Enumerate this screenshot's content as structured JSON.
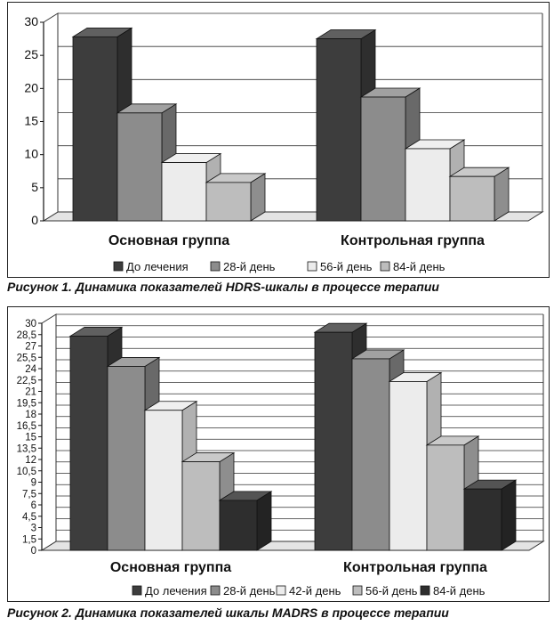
{
  "figures": [
    {
      "caption": "Рисунок 1. Динамика показателей HDRS-шкалы в процессе терапии"
    },
    {
      "caption": "Рисунок 2. Динамика показателей шкалы MADRS в процессе терапии"
    }
  ],
  "chart_data": [
    {
      "type": "bar",
      "categories": [
        "Основная группа",
        "Контрольная группа"
      ],
      "series": [
        {
          "name": "До лечения",
          "values": [
            27.8,
            27.5
          ],
          "color": "#3d3d3d"
        },
        {
          "name": "28-й день",
          "values": [
            16.3,
            18.7
          ],
          "color": "#8c8c8c"
        },
        {
          "name": "56-й день",
          "values": [
            8.8,
            10.9
          ],
          "color": "#ececec"
        },
        {
          "name": "84-й день",
          "values": [
            5.8,
            6.7
          ],
          "color": "#bdbdbd"
        }
      ],
      "ylim": [
        0,
        30
      ],
      "yticks": [
        0,
        5,
        10,
        15,
        20,
        25,
        30
      ],
      "grid": true,
      "legend": "bottom"
    },
    {
      "type": "bar",
      "categories": [
        "Основная группа",
        "Контрольная группа"
      ],
      "series": [
        {
          "name": "До лечения",
          "values": [
            28.3,
            28.8
          ],
          "color": "#3d3d3d"
        },
        {
          "name": "28-й день",
          "values": [
            24.3,
            25.3
          ],
          "color": "#8c8c8c"
        },
        {
          "name": "42-й день",
          "values": [
            18.5,
            22.3
          ],
          "color": "#ececec"
        },
        {
          "name": "56-й день",
          "values": [
            11.7,
            13.9
          ],
          "color": "#bdbdbd"
        },
        {
          "name": "84-й день",
          "values": [
            6.6,
            8.1
          ],
          "color": "#2e2e2e"
        }
      ],
      "ylim": [
        0,
        30
      ],
      "yticks": [
        0,
        1.5,
        3,
        4.5,
        6,
        7.5,
        9,
        10.5,
        12,
        13.5,
        15,
        16.5,
        18,
        19.5,
        21,
        22.5,
        24,
        25.5,
        27,
        28.5,
        30
      ],
      "ytick_labels": [
        "0",
        "1,5",
        "3",
        "4,5",
        "6",
        "7,5",
        "9",
        "10,5",
        "12",
        "13,5",
        "15",
        "16,5",
        "18",
        "19,5",
        "21",
        "22,5",
        "24",
        "25,5",
        "27",
        "28,5",
        "30"
      ],
      "grid": true,
      "legend": "bottom"
    }
  ]
}
